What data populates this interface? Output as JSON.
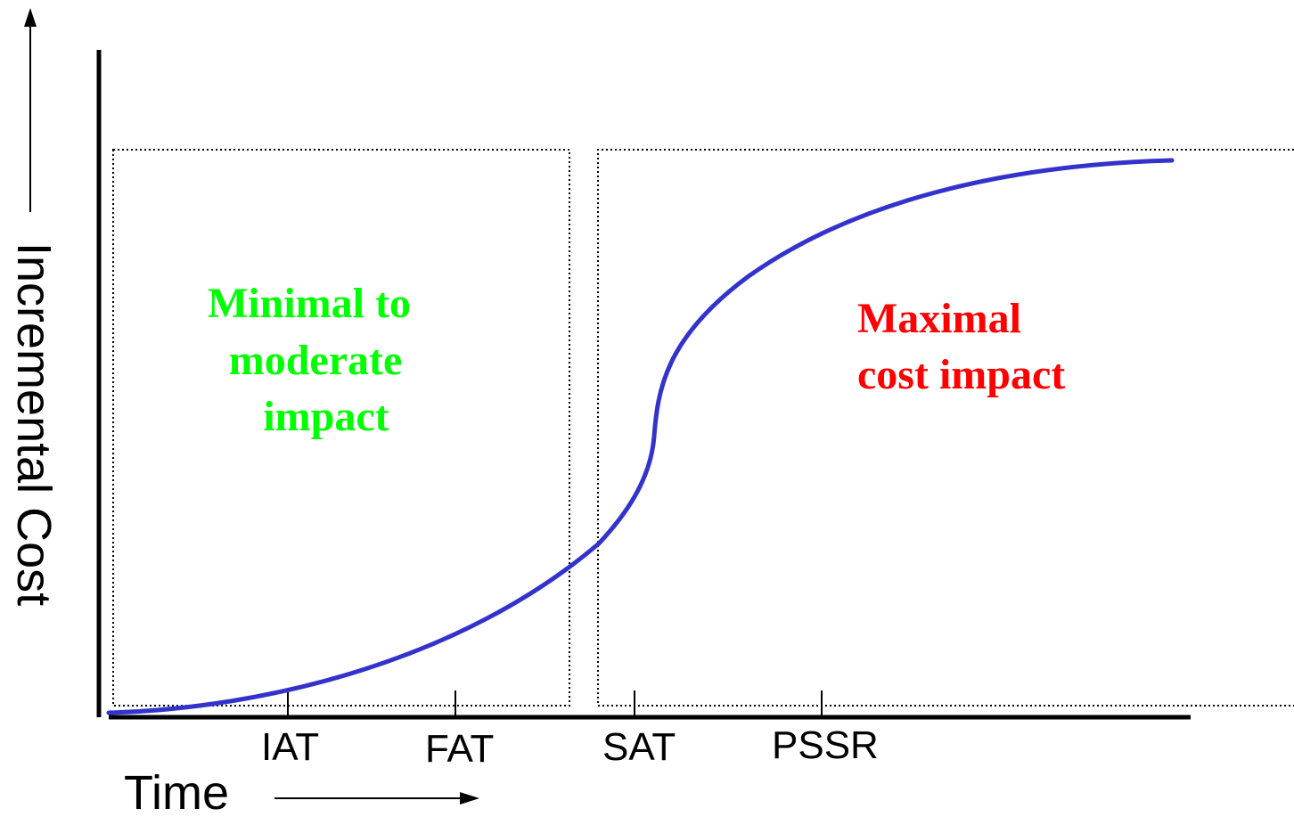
{
  "axes": {
    "y_title": "Incremental Cost",
    "x_title": "Time"
  },
  "milestones": [
    {
      "label": "IAT"
    },
    {
      "label": "FAT"
    },
    {
      "label": "SAT"
    },
    {
      "label": "PSSR"
    }
  ],
  "regions": {
    "left": {
      "lines": [
        "Minimal to",
        "moderate",
        "impact"
      ],
      "color": "#00ff00"
    },
    "right": {
      "lines": [
        "Maximal",
        "cost impact"
      ],
      "color": "#ff0000"
    }
  },
  "colors": {
    "curve": "#3333cc",
    "axis": "#000000",
    "region_border": "#000000"
  }
}
